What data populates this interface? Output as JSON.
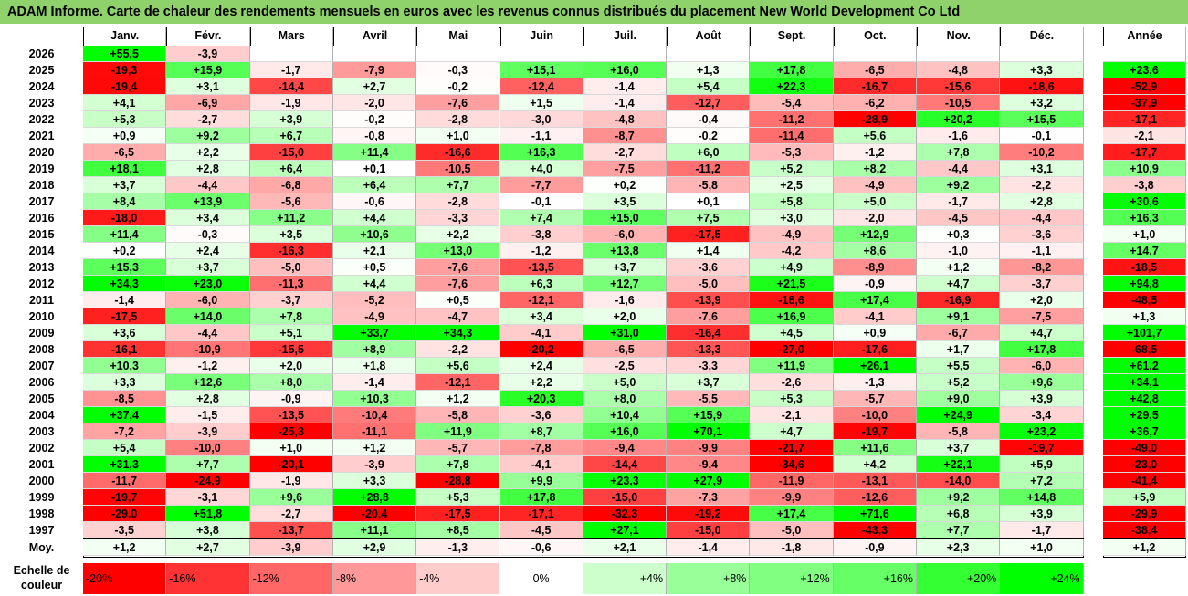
{
  "title": "ADAM Informe. Carte de chaleur des rendements mensuels en euros avec les revenus connus distribués du placement New World Development Co Ltd",
  "chart_data": {
    "type": "heatmap",
    "months": [
      "Janv.",
      "Févr.",
      "Mars",
      "Avril",
      "Mai",
      "Juin",
      "Juil.",
      "Août",
      "Sept.",
      "Oct.",
      "Nov.",
      "Déc."
    ],
    "year_header": "Année",
    "rows": [
      {
        "year": "2026",
        "months": [
          "+55,5",
          "-3,9",
          "",
          "",
          "",
          "",
          "",
          "",
          "",
          "",
          "",
          ""
        ],
        "annual": ""
      },
      {
        "year": "2025",
        "months": [
          "-19,3",
          "+15,9",
          "-1,7",
          "-7,9",
          "-0,3",
          "+15,1",
          "+16,0",
          "+1,3",
          "+17,8",
          "-6,5",
          "-4,8",
          "+3,3"
        ],
        "annual": "+23,6"
      },
      {
        "year": "2024",
        "months": [
          "-19,4",
          "+3,1",
          "-14,4",
          "+2,7",
          "-0,2",
          "-12,4",
          "-1,4",
          "+5,4",
          "+22,3",
          "-16,7",
          "-15,6",
          "-18,6"
        ],
        "annual": "-52,9"
      },
      {
        "year": "2023",
        "months": [
          "+4,1",
          "-6,9",
          "-1,9",
          "-2,0",
          "-7,6",
          "+1,5",
          "-1,4",
          "-12,7",
          "-5,4",
          "-6,2",
          "-10,5",
          "+3,2"
        ],
        "annual": "-37,9"
      },
      {
        "year": "2022",
        "months": [
          "+5,3",
          "-2,7",
          "+3,9",
          "-0,2",
          "-2,8",
          "-3,0",
          "-4,8",
          "-0,4",
          "-11,2",
          "-28,9",
          "+20,2",
          "+15,5"
        ],
        "annual": "-17,1"
      },
      {
        "year": "2021",
        "months": [
          "+0,9",
          "+9,2",
          "+6,7",
          "-0,8",
          "+1,0",
          "-1,1",
          "-8,7",
          "-0,2",
          "-11,4",
          "+5,6",
          "-1,6",
          "-0,1"
        ],
        "annual": "-2,1"
      },
      {
        "year": "2020",
        "months": [
          "-6,5",
          "+2,2",
          "-15,0",
          "+11,4",
          "-16,6",
          "+16,3",
          "-2,7",
          "+6,0",
          "-5,3",
          "-1,2",
          "+7,8",
          "-10,2"
        ],
        "annual": "-17,7"
      },
      {
        "year": "2019",
        "months": [
          "+18,1",
          "+2,8",
          "+6,4",
          "+0,1",
          "-10,5",
          "+4,0",
          "-7,5",
          "-11,2",
          "+5,2",
          "+8,2",
          "-4,4",
          "+3,1"
        ],
        "annual": "+10,9"
      },
      {
        "year": "2018",
        "months": [
          "+3,7",
          "-4,4",
          "-6,8",
          "+6,4",
          "+7,7",
          "-7,7",
          "+0,2",
          "-5,8",
          "+2,5",
          "-4,9",
          "+9,2",
          "-2,2"
        ],
        "annual": "-3,8"
      },
      {
        "year": "2017",
        "months": [
          "+8,4",
          "+13,9",
          "-5,6",
          "-0,6",
          "-2,8",
          "-0,1",
          "+3,5",
          "+0,1",
          "+5,8",
          "+5,0",
          "-1,7",
          "+2,8"
        ],
        "annual": "+30,6"
      },
      {
        "year": "2016",
        "months": [
          "-18,0",
          "+3,4",
          "+11,2",
          "+4,4",
          "-3,3",
          "+7,4",
          "+15,0",
          "+7,5",
          "+3,0",
          "-2,0",
          "-4,5",
          "-4,4"
        ],
        "annual": "+16,3"
      },
      {
        "year": "2015",
        "months": [
          "+11,4",
          "-0,3",
          "+3,5",
          "+10,6",
          "+2,2",
          "-3,8",
          "-6,0",
          "-17,5",
          "-4,9",
          "+12,9",
          "+0,3",
          "-3,6"
        ],
        "annual": "+1,0"
      },
      {
        "year": "2014",
        "months": [
          "+0,2",
          "+2,4",
          "-16,3",
          "+2,1",
          "+13,0",
          "-1,2",
          "+13,8",
          "+1,4",
          "-4,2",
          "+8,6",
          "-1,0",
          "-1,1"
        ],
        "annual": "+14,7"
      },
      {
        "year": "2013",
        "months": [
          "+15,3",
          "+3,7",
          "-5,0",
          "+0,5",
          "-7,6",
          "-13,5",
          "+3,7",
          "-3,6",
          "+4,9",
          "-8,9",
          "+1,2",
          "-8,2"
        ],
        "annual": "-18,5"
      },
      {
        "year": "2012",
        "months": [
          "+34,3",
          "+23,0",
          "-11,3",
          "+4,4",
          "-7,6",
          "+6,3",
          "+12,7",
          "-5,0",
          "+21,5",
          "-0,9",
          "+4,7",
          "-3,7"
        ],
        "annual": "+94,8"
      },
      {
        "year": "2011",
        "months": [
          "-1,4",
          "-6,0",
          "-3,7",
          "-5,2",
          "+0,5",
          "-12,1",
          "-1,6",
          "-13,9",
          "-18,6",
          "+17,4",
          "-16,9",
          "+2,0"
        ],
        "annual": "-48,5"
      },
      {
        "year": "2010",
        "months": [
          "-17,5",
          "+14,0",
          "+7,8",
          "-4,9",
          "-4,7",
          "+3,4",
          "+2,0",
          "-7,6",
          "+16,9",
          "-4,1",
          "+9,1",
          "-7,5"
        ],
        "annual": "+1,3"
      },
      {
        "year": "2009",
        "months": [
          "+3,6",
          "-4,4",
          "+5,1",
          "+33,7",
          "+34,3",
          "-4,1",
          "+31,0",
          "-16,4",
          "+4,5",
          "+0,9",
          "-6,7",
          "+4,7"
        ],
        "annual": "+101,7"
      },
      {
        "year": "2008",
        "months": [
          "-16,1",
          "-10,9",
          "-15,5",
          "+8,9",
          "-2,2",
          "-20,2",
          "-6,5",
          "-13,3",
          "-27,0",
          "-17,6",
          "+1,7",
          "+17,8"
        ],
        "annual": "-68,5"
      },
      {
        "year": "2007",
        "months": [
          "+10,3",
          "-1,2",
          "+2,0",
          "+1,8",
          "+5,6",
          "+2,4",
          "-2,5",
          "-3,3",
          "+11,9",
          "+26,1",
          "+5,5",
          "-6,0"
        ],
        "annual": "+61,2"
      },
      {
        "year": "2006",
        "months": [
          "+3,3",
          "+12,6",
          "+8,0",
          "-1,4",
          "-12,1",
          "+2,2",
          "+5,0",
          "+3,7",
          "-2,6",
          "-1,3",
          "+5,2",
          "+9,6"
        ],
        "annual": "+34,1"
      },
      {
        "year": "2005",
        "months": [
          "-8,5",
          "+2,8",
          "-0,9",
          "+10,3",
          "+1,2",
          "+20,3",
          "+8,0",
          "-5,5",
          "+5,3",
          "-5,7",
          "+9,0",
          "+3,9"
        ],
        "annual": "+42,8"
      },
      {
        "year": "2004",
        "months": [
          "+37,4",
          "-1,5",
          "-13,5",
          "-10,4",
          "-5,8",
          "-3,6",
          "+10,4",
          "+15,9",
          "-2,1",
          "-10,0",
          "+24,9",
          "-3,4"
        ],
        "annual": "+29,5"
      },
      {
        "year": "2003",
        "months": [
          "-7,2",
          "-3,9",
          "-25,3",
          "-11,1",
          "+11,9",
          "+8,7",
          "+16,0",
          "+70,1",
          "+4,7",
          "-19,7",
          "-5,8",
          "+23,2"
        ],
        "annual": "+36,7"
      },
      {
        "year": "2002",
        "months": [
          "+5,4",
          "-10,0",
          "+1,0",
          "+1,2",
          "-5,7",
          "-7,8",
          "-9,4",
          "-9,9",
          "-21,7",
          "+11,6",
          "+3,7",
          "-19,7"
        ],
        "annual": "-49,0"
      },
      {
        "year": "2001",
        "months": [
          "+31,3",
          "+7,7",
          "-20,1",
          "-3,9",
          "+7,8",
          "-4,1",
          "-14,4",
          "-9,4",
          "-34,6",
          "+4,2",
          "+22,1",
          "+5,9"
        ],
        "annual": "-23,0"
      },
      {
        "year": "2000",
        "months": [
          "-11,7",
          "-24,9",
          "-1,9",
          "+3,3",
          "-28,8",
          "+9,9",
          "+23,3",
          "+27,9",
          "-11,9",
          "-13,1",
          "-14,0",
          "+7,2"
        ],
        "annual": "-41,4"
      },
      {
        "year": "1999",
        "months": [
          "-19,7",
          "-3,1",
          "+9,6",
          "+28,8",
          "+5,3",
          "+17,8",
          "-15,0",
          "-7,3",
          "-9,9",
          "-12,6",
          "+9,2",
          "+14,8"
        ],
        "annual": "+5,9"
      },
      {
        "year": "1998",
        "months": [
          "-29,0",
          "+51,8",
          "-2,7",
          "-20,4",
          "-17,5",
          "-17,1",
          "-32,3",
          "-19,2",
          "+17,4",
          "+71,6",
          "+6,8",
          "+3,9"
        ],
        "annual": "-29,9"
      },
      {
        "year": "1997",
        "months": [
          "-3,5",
          "+3,8",
          "-13,7",
          "+11,1",
          "+8,5",
          "-4,5",
          "+27,1",
          "-15,0",
          "-5,0",
          "-43,3",
          "+7,7",
          "-1,7"
        ],
        "annual": "-38,4"
      }
    ],
    "average": {
      "label": "Moy.",
      "months": [
        "+1,2",
        "+2,7",
        "-3,9",
        "+2,9",
        "-1,3",
        "-0,6",
        "+2,1",
        "-1,4",
        "-1,8",
        "-0,9",
        "+2,3",
        "+1,0"
      ],
      "annual": "+1,2"
    },
    "scale": {
      "label_line1": "Echelle de",
      "label_line2": "couleur",
      "stops": [
        {
          "label": "-20%",
          "value": -20,
          "color": "#ff0000"
        },
        {
          "label": "-16%",
          "value": -16,
          "color": "#ff3333"
        },
        {
          "label": "-12%",
          "value": -12,
          "color": "#ff6666"
        },
        {
          "label": "-8%",
          "value": -8,
          "color": "#ff9999"
        },
        {
          "label": "-4%",
          "value": -4,
          "color": "#ffcccc"
        },
        {
          "label": "0%",
          "value": 0,
          "color": "#ffffff"
        },
        {
          "label": "+4%",
          "value": 4,
          "color": "#ccffcc"
        },
        {
          "label": "+8%",
          "value": 8,
          "color": "#99ff99"
        },
        {
          "label": "+12%",
          "value": 12,
          "color": "#80ff80"
        },
        {
          "label": "+16%",
          "value": 16,
          "color": "#66ff66"
        },
        {
          "label": "+20%",
          "value": 20,
          "color": "#33ff33"
        },
        {
          "label": "+24%",
          "value": 24,
          "color": "#00ff00"
        }
      ]
    }
  }
}
